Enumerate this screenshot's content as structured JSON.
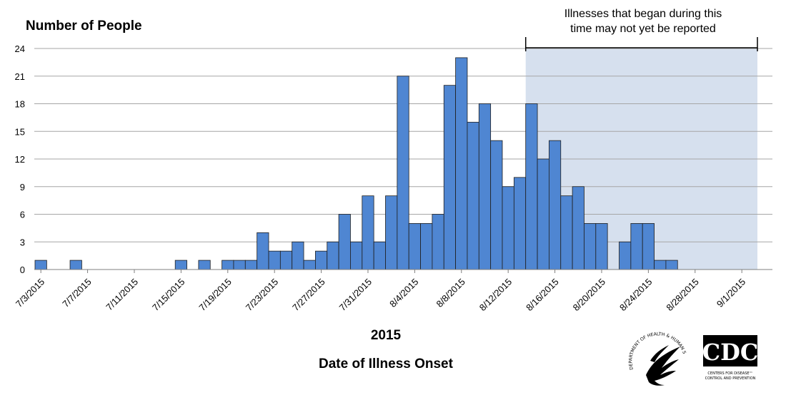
{
  "chart_data": {
    "type": "bar",
    "ylabel": "Number of People",
    "xlabel": "Date of Illness Onset",
    "year_label": "2015",
    "ylim": [
      0,
      24
    ],
    "yticks": [
      0,
      3,
      6,
      9,
      12,
      15,
      18,
      21,
      24
    ],
    "grid": "horizontal",
    "start_date": "7/3/2015",
    "tick_labels": [
      "7/3/2015",
      "7/7/2015",
      "7/11/2015",
      "7/15/2015",
      "7/19/2015",
      "7/23/2015",
      "7/27/2015",
      "7/31/2015",
      "8/4/2015",
      "8/8/2015",
      "8/12/2015",
      "8/16/2015",
      "8/20/2015",
      "8/24/2015",
      "8/28/2015",
      "9/1/2015"
    ],
    "categories": [
      "7/3/2015",
      "7/4/2015",
      "7/5/2015",
      "7/6/2015",
      "7/7/2015",
      "7/8/2015",
      "7/9/2015",
      "7/10/2015",
      "7/11/2015",
      "7/12/2015",
      "7/13/2015",
      "7/14/2015",
      "7/15/2015",
      "7/16/2015",
      "7/17/2015",
      "7/18/2015",
      "7/19/2015",
      "7/20/2015",
      "7/21/2015",
      "7/22/2015",
      "7/23/2015",
      "7/24/2015",
      "7/25/2015",
      "7/26/2015",
      "7/27/2015",
      "7/28/2015",
      "7/29/2015",
      "7/30/2015",
      "7/31/2015",
      "8/1/2015",
      "8/2/2015",
      "8/3/2015",
      "8/4/2015",
      "8/5/2015",
      "8/6/2015",
      "8/7/2015",
      "8/8/2015",
      "8/9/2015",
      "8/10/2015",
      "8/11/2015",
      "8/12/2015",
      "8/13/2015",
      "8/14/2015",
      "8/15/2015",
      "8/16/2015",
      "8/17/2015",
      "8/18/2015",
      "8/19/2015",
      "8/20/2015",
      "8/21/2015",
      "8/22/2015",
      "8/23/2015",
      "8/24/2015",
      "8/25/2015",
      "8/26/2015",
      "8/27/2015",
      "8/28/2015",
      "8/29/2015",
      "8/30/2015",
      "8/31/2015",
      "9/1/2015"
    ],
    "values": [
      1,
      0,
      0,
      1,
      0,
      0,
      0,
      0,
      0,
      0,
      0,
      0,
      1,
      0,
      1,
      0,
      1,
      1,
      1,
      4,
      2,
      2,
      3,
      1,
      2,
      3,
      6,
      3,
      8,
      3,
      8,
      21,
      5,
      5,
      6,
      20,
      23,
      16,
      18,
      14,
      9,
      10,
      18,
      12,
      14,
      8,
      9,
      5,
      5,
      0,
      3,
      5,
      5,
      1,
      1,
      0,
      0,
      0,
      0,
      0,
      0
    ],
    "bar_color": "#4f86d2",
    "bar_edge_color": "#1f1f1f",
    "reporting_lag": {
      "start": "8/14/2015",
      "end": "9/1/2015",
      "text_line1": "Illnesses that began during this",
      "text_line2": "time may not yet be reported",
      "shade_color": "#d6e0ee"
    }
  }
}
